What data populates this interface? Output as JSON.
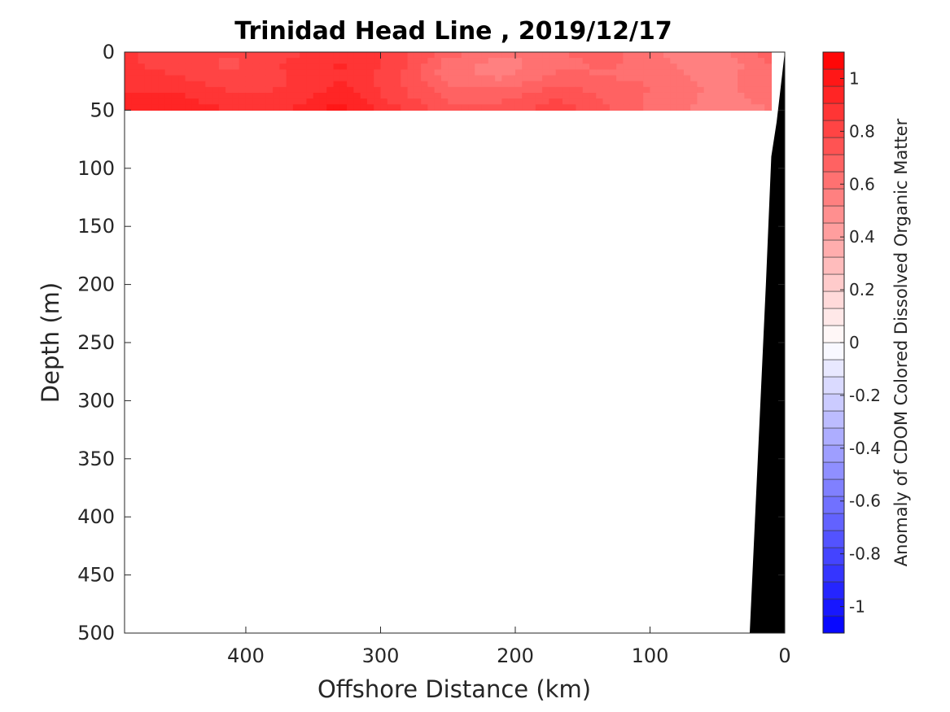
{
  "chart_data": {
    "type": "heatmap",
    "title": "Trinidad Head Line , 2019/12/17",
    "xlabel": "Offshore Distance (km)",
    "ylabel": "Depth (m)",
    "xlim": [
      490,
      0
    ],
    "ylim": [
      0,
      500
    ],
    "x_reversed": true,
    "y_reversed": true,
    "x_ticks": [
      400,
      300,
      200,
      100,
      0
    ],
    "y_ticks": [
      0,
      50,
      100,
      150,
      200,
      250,
      300,
      350,
      400,
      450,
      500
    ],
    "colorbar": {
      "label": "Anomaly of CDOM Colored Dissolved Organic Matter",
      "range": [
        -1.1,
        1.1
      ],
      "levels": 34,
      "ticks": [
        -1,
        -0.8,
        -0.6,
        -0.4,
        -0.2,
        0,
        0.2,
        0.4,
        0.6,
        0.8,
        1
      ],
      "colors": {
        "min": "#0000ff",
        "mid": "#ffffff",
        "max": "#ff0000"
      }
    },
    "data_extent": {
      "x": [
        490,
        10
      ],
      "depth": [
        0,
        50
      ]
    },
    "grid": {
      "x": [
        490,
        450,
        410,
        370,
        330,
        290,
        250,
        210,
        170,
        130,
        90,
        50,
        10
      ],
      "depth": [
        0,
        10,
        20,
        30,
        40,
        50
      ],
      "values": [
        [
          0.85,
          0.8,
          0.78,
          0.82,
          0.88,
          0.82,
          0.68,
          0.6,
          0.64,
          0.68,
          0.58,
          0.55,
          0.7
        ],
        [
          0.85,
          0.82,
          0.76,
          0.85,
          0.92,
          0.82,
          0.62,
          0.55,
          0.62,
          0.66,
          0.6,
          0.52,
          0.66
        ],
        [
          0.86,
          0.84,
          0.78,
          0.84,
          0.9,
          0.8,
          0.6,
          0.56,
          0.66,
          0.64,
          0.62,
          0.54,
          0.64
        ],
        [
          0.88,
          0.88,
          0.82,
          0.84,
          0.92,
          0.8,
          0.66,
          0.64,
          0.72,
          0.68,
          0.64,
          0.56,
          0.62
        ],
        [
          0.92,
          0.92,
          0.86,
          0.86,
          0.96,
          0.82,
          0.7,
          0.7,
          0.78,
          0.7,
          0.62,
          0.56,
          0.6
        ],
        [
          0.95,
          0.96,
          0.9,
          0.9,
          1.0,
          0.86,
          0.74,
          0.74,
          0.82,
          0.72,
          0.6,
          0.56,
          0.58
        ]
      ]
    },
    "bathymetry": {
      "fill": "#000000",
      "x": [
        0,
        3,
        6,
        10,
        14,
        18,
        22,
        26,
        26
      ],
      "depth": [
        0,
        30,
        60,
        90,
        200,
        300,
        400,
        500,
        500
      ]
    }
  }
}
